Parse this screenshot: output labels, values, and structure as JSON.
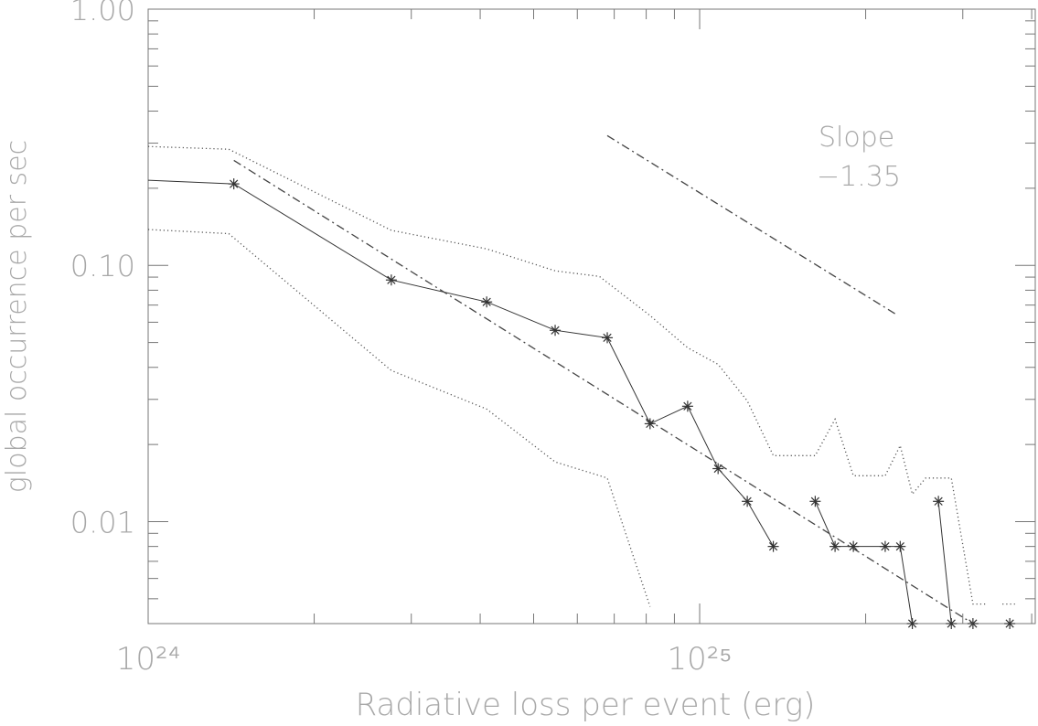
{
  "chart_data": {
    "type": "line",
    "xlabel": "Radiative loss per event (erg)",
    "ylabel": "global occurrence per sec",
    "xscale": "log",
    "yscale": "log",
    "xlim": [
      1e+24,
      4.06e+25
    ],
    "ylim": [
      0.004,
      1
    ],
    "xticks": [
      {
        "value": 1e+24,
        "label": "10²⁴"
      },
      {
        "value": 1e+25,
        "label": "10²⁵"
      }
    ],
    "yticks": [
      {
        "value": 0.01,
        "label": "0.01"
      },
      {
        "value": 0.1,
        "label": "0.10"
      },
      {
        "value": 1,
        "label": "1.00"
      }
    ],
    "xminorticks": [
      2e+24,
      3e+24,
      4e+24,
      5e+24,
      6e+24,
      7e+24,
      8e+24,
      9e+24,
      2e+25,
      3e+25,
      4e+25
    ],
    "yminorticks": [
      0.005,
      0.006,
      0.007,
      0.008,
      0.009,
      0.02,
      0.03,
      0.04,
      0.05,
      0.06,
      0.07,
      0.08,
      0.09,
      0.2,
      0.3,
      0.4,
      0.5,
      0.6,
      0.7,
      0.8,
      0.9
    ],
    "annotations": [
      "Slope",
      "−1.35"
    ],
    "series": [
      {
        "style": "solid",
        "marker": "asterisk",
        "color": "#333333",
        "x": [
          1e+24,
          1.43e+24,
          2.76e+24,
          4.11e+24,
          5.47e+24,
          6.8e+24,
          8.13e+24,
          9.51e+24,
          1.08e+25,
          1.22e+25,
          1.36e+25,
          null,
          1.62e+25,
          1.76e+25,
          1.9e+25,
          2.17e+25,
          2.31e+25,
          2.43e+25,
          null,
          2.71e+25,
          2.86e+25,
          null,
          3.13e+25,
          null,
          3.65e+25
        ],
        "values": [
          0.215,
          0.208,
          0.0877,
          0.072,
          0.0558,
          0.0522,
          0.0241,
          0.0282,
          0.0161,
          0.012,
          0.008,
          null,
          0.012,
          0.008,
          0.008,
          0.008,
          0.008,
          0.004,
          null,
          0.012,
          0.004,
          null,
          0.004,
          null,
          0.004
        ]
      },
      {
        "style": "dotted",
        "color": "#555555",
        "x": [
          1e+24,
          1.4e+24,
          2.76e+24,
          4.11e+24,
          5.47e+24,
          6.58e+24,
          8.13e+24,
          9.51e+24,
          1.08e+25,
          1.22e+25,
          1.36e+25,
          1.62e+25,
          1.76e+25,
          1.9e+25,
          2.17e+25,
          2.31e+25,
          2.43e+25,
          2.57e+25,
          2.86e+25,
          3.13e+25,
          3.33e+25,
          null,
          3.54e+25,
          3.73e+25
        ],
        "values": [
          0.291,
          0.284,
          0.137,
          0.116,
          0.0952,
          0.0906,
          0.0637,
          0.0477,
          0.0411,
          0.0296,
          0.0181,
          0.0181,
          0.0251,
          0.0151,
          0.0151,
          0.0198,
          0.0128,
          0.0148,
          0.0148,
          0.00477,
          0.00477,
          null,
          0.00477,
          0.00477
        ]
      },
      {
        "style": "dotted",
        "color": "#555555",
        "x": [
          1e+24,
          1.4e+24,
          2.76e+24,
          4.11e+24,
          5.47e+24,
          6.8e+24,
          8.13e+24
        ],
        "values": [
          0.138,
          0.133,
          0.0389,
          0.0275,
          0.0171,
          0.0148,
          0.00466
        ]
      },
      {
        "style": "dashdot",
        "color": "#444444",
        "x": [
          1.43e+24,
          3.13e+25
        ],
        "values": [
          0.257,
          0.004
        ]
      },
      {
        "style": "dashdot",
        "color": "#444444",
        "x": [
          6.8e+24,
          2.29e+25
        ],
        "values": [
          0.321,
          0.0637
        ]
      }
    ]
  }
}
